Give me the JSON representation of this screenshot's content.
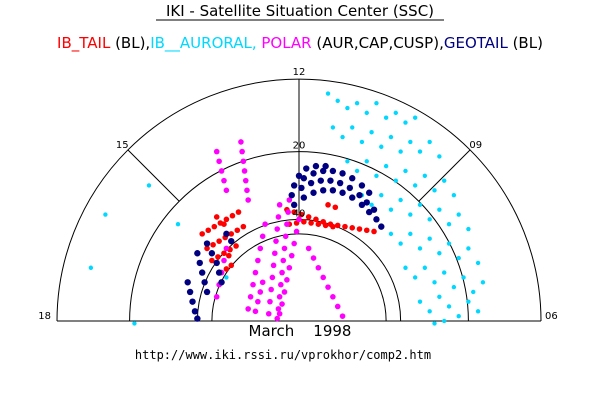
{
  "chart_data": {
    "type": "scatter",
    "coordinate_system": "polar half-dial (magnetic local time vs. latitude rings)",
    "title": "IKI - Satellite Situation Center (SSC)",
    "subtitle_segments": [
      {
        "text": "IB_TAIL",
        "color": "#ff0000"
      },
      {
        "text": " (BL),",
        "color": "#000000"
      },
      {
        "text": "IB__AURORAL,",
        "color": "#00d8ff"
      },
      {
        "text": " POLAR",
        "color": "#ff00ff"
      },
      {
        "text": " (AUR,CAP,CUSP),",
        "color": "#000000"
      },
      {
        "text": "GEOTAIL",
        "color": "#000080"
      },
      {
        "text": " (BL)",
        "color": "#000000"
      }
    ],
    "date_label": "March    1998",
    "url_label": "http://www.iki.rssi.ru/vprokhor/comp2.htm",
    "time_labels": [
      {
        "text": "18",
        "angle_deg": 180,
        "inner": false
      },
      {
        "text": "15",
        "angle_deg": 135,
        "inner": false
      },
      {
        "text": "12",
        "angle_deg": 90,
        "inner": false
      },
      {
        "text": "09",
        "angle_deg": 45,
        "inner": false
      },
      {
        "text": "06",
        "angle_deg": 0,
        "inner": false
      },
      {
        "text": "20",
        "angle_deg": 90,
        "inner": true
      },
      {
        "text": "40",
        "angle_deg": 90,
        "inner": true
      }
    ],
    "rings": [
      1.0,
      0.7,
      0.42,
      0.36
    ],
    "spokes_deg": [
      45,
      90,
      135
    ],
    "series": [
      {
        "name": "IB_TAIL",
        "color": "#ff0000",
        "points": [
          [
            -0.4,
            0.36
          ],
          [
            -0.375,
            0.375
          ],
          [
            -0.35,
            0.39
          ],
          [
            -0.325,
            0.405
          ],
          [
            -0.3,
            0.42
          ],
          [
            -0.275,
            0.435
          ],
          [
            -0.25,
            0.45
          ],
          [
            -0.38,
            0.3
          ],
          [
            -0.355,
            0.315
          ],
          [
            -0.33,
            0.33
          ],
          [
            -0.305,
            0.345
          ],
          [
            -0.28,
            0.36
          ],
          [
            -0.255,
            0.375
          ],
          [
            -0.23,
            0.39
          ],
          [
            -0.36,
            0.25
          ],
          [
            -0.335,
            0.265
          ],
          [
            -0.31,
            0.28
          ],
          [
            -0.285,
            0.295
          ],
          [
            -0.26,
            0.31
          ],
          [
            -0.32,
            0.2
          ],
          [
            -0.3,
            0.215
          ],
          [
            -0.28,
            0.23
          ],
          [
            -0.34,
            0.43
          ],
          [
            -0.31,
            0.4
          ],
          [
            -0.29,
            0.27
          ],
          [
            -0.05,
            0.46
          ],
          [
            -0.02,
            0.45
          ],
          [
            0.01,
            0.44
          ],
          [
            0.04,
            0.43
          ],
          [
            0.07,
            0.42
          ],
          [
            0.1,
            0.41
          ],
          [
            0.13,
            0.4
          ],
          [
            0.16,
            0.395
          ],
          [
            0.19,
            0.39
          ],
          [
            0.22,
            0.385
          ],
          [
            0.25,
            0.38
          ],
          [
            0.28,
            0.375
          ],
          [
            0.31,
            0.37
          ],
          [
            -0.04,
            0.4
          ],
          [
            -0.01,
            0.405
          ],
          [
            0.02,
            0.41
          ],
          [
            0.05,
            0.405
          ],
          [
            0.08,
            0.4
          ],
          [
            0.11,
            0.395
          ],
          [
            0.14,
            0.39
          ],
          [
            0.12,
            0.48
          ],
          [
            0.15,
            0.47
          ]
        ]
      },
      {
        "name": "IB__AURORAL",
        "color": "#00d8ff",
        "points": [
          [
            0.12,
            0.94
          ],
          [
            0.16,
            0.91
          ],
          [
            0.2,
            0.88
          ],
          [
            0.24,
            0.9
          ],
          [
            0.28,
            0.86
          ],
          [
            0.32,
            0.9
          ],
          [
            0.36,
            0.84
          ],
          [
            0.4,
            0.86
          ],
          [
            0.44,
            0.82
          ],
          [
            0.48,
            0.84
          ],
          [
            0.14,
            0.8
          ],
          [
            0.18,
            0.76
          ],
          [
            0.22,
            0.8
          ],
          [
            0.26,
            0.74
          ],
          [
            0.3,
            0.78
          ],
          [
            0.34,
            0.72
          ],
          [
            0.38,
            0.76
          ],
          [
            0.42,
            0.7
          ],
          [
            0.46,
            0.74
          ],
          [
            0.5,
            0.7
          ],
          [
            0.54,
            0.74
          ],
          [
            0.58,
            0.68
          ],
          [
            0.2,
            0.66
          ],
          [
            0.24,
            0.62
          ],
          [
            0.28,
            0.66
          ],
          [
            0.32,
            0.6
          ],
          [
            0.36,
            0.64
          ],
          [
            0.4,
            0.58
          ],
          [
            0.44,
            0.62
          ],
          [
            0.48,
            0.56
          ],
          [
            0.52,
            0.6
          ],
          [
            0.56,
            0.54
          ],
          [
            0.6,
            0.58
          ],
          [
            0.64,
            0.52
          ],
          [
            0.26,
            0.52
          ],
          [
            0.3,
            0.48
          ],
          [
            0.34,
            0.52
          ],
          [
            0.38,
            0.46
          ],
          [
            0.42,
            0.5
          ],
          [
            0.46,
            0.44
          ],
          [
            0.5,
            0.48
          ],
          [
            0.54,
            0.42
          ],
          [
            0.58,
            0.46
          ],
          [
            0.62,
            0.4
          ],
          [
            0.66,
            0.44
          ],
          [
            0.7,
            0.38
          ],
          [
            0.38,
            0.36
          ],
          [
            0.42,
            0.32
          ],
          [
            0.46,
            0.36
          ],
          [
            0.5,
            0.3
          ],
          [
            0.54,
            0.34
          ],
          [
            0.58,
            0.28
          ],
          [
            0.62,
            0.32
          ],
          [
            0.66,
            0.26
          ],
          [
            0.7,
            0.3
          ],
          [
            0.74,
            0.24
          ],
          [
            0.44,
            0.22
          ],
          [
            0.48,
            0.18
          ],
          [
            0.52,
            0.22
          ],
          [
            0.56,
            0.16
          ],
          [
            0.6,
            0.2
          ],
          [
            0.64,
            0.14
          ],
          [
            0.68,
            0.18
          ],
          [
            0.72,
            0.12
          ],
          [
            0.76,
            0.16
          ],
          [
            0.5,
            0.08
          ],
          [
            0.54,
            0.04
          ],
          [
            0.58,
            0.1
          ],
          [
            0.62,
            0.06
          ],
          [
            0.66,
            0.02
          ],
          [
            0.7,
            0.08
          ],
          [
            0.74,
            0.04
          ],
          [
            0.56,
            -0.01
          ],
          [
            0.6,
            0.0
          ],
          [
            -0.62,
            0.56
          ],
          [
            -0.8,
            0.44
          ],
          [
            -0.86,
            0.22
          ],
          [
            -0.68,
            -0.01
          ],
          [
            -0.5,
            0.4
          ],
          [
            -0.3,
            0.18
          ]
        ]
      },
      {
        "name": "POLAR",
        "color": "#ff00ff",
        "points": [
          [
            -0.34,
            0.7
          ],
          [
            -0.33,
            0.66
          ],
          [
            -0.32,
            0.62
          ],
          [
            -0.31,
            0.58
          ],
          [
            -0.3,
            0.54
          ],
          [
            -0.24,
            0.74
          ],
          [
            -0.235,
            0.7
          ],
          [
            -0.23,
            0.66
          ],
          [
            -0.225,
            0.62
          ],
          [
            -0.22,
            0.58
          ],
          [
            -0.215,
            0.54
          ],
          [
            -0.21,
            0.5
          ],
          [
            -0.08,
            0.48
          ],
          [
            -0.085,
            0.43
          ],
          [
            -0.09,
            0.38
          ],
          [
            -0.095,
            0.33
          ],
          [
            -0.1,
            0.28
          ],
          [
            -0.105,
            0.23
          ],
          [
            -0.11,
            0.18
          ],
          [
            -0.115,
            0.13
          ],
          [
            -0.12,
            0.08
          ],
          [
            -0.125,
            0.03
          ],
          [
            -0.04,
            0.5
          ],
          [
            -0.045,
            0.45
          ],
          [
            -0.05,
            0.4
          ],
          [
            -0.055,
            0.35
          ],
          [
            -0.06,
            0.3
          ],
          [
            -0.065,
            0.25
          ],
          [
            -0.07,
            0.2
          ],
          [
            -0.075,
            0.15
          ],
          [
            -0.08,
            0.1
          ],
          [
            -0.085,
            0.05
          ],
          [
            -0.09,
            0.01
          ],
          [
            -0.14,
            0.4
          ],
          [
            -0.15,
            0.35
          ],
          [
            -0.16,
            0.3
          ],
          [
            -0.17,
            0.25
          ],
          [
            -0.18,
            0.2
          ],
          [
            -0.19,
            0.15
          ],
          [
            -0.2,
            0.1
          ],
          [
            -0.21,
            0.05
          ],
          [
            -0.3,
            0.3
          ],
          [
            -0.31,
            0.25
          ],
          [
            -0.32,
            0.2
          ],
          [
            -0.33,
            0.15
          ],
          [
            -0.34,
            0.1
          ],
          [
            0.0,
            0.42
          ],
          [
            -0.01,
            0.37
          ],
          [
            -0.02,
            0.32
          ],
          [
            -0.03,
            0.27
          ],
          [
            -0.04,
            0.22
          ],
          [
            -0.05,
            0.17
          ],
          [
            -0.06,
            0.12
          ],
          [
            -0.07,
            0.07
          ],
          [
            -0.08,
            0.03
          ],
          [
            0.04,
            0.3
          ],
          [
            0.06,
            0.26
          ],
          [
            0.08,
            0.22
          ],
          [
            0.1,
            0.18
          ],
          [
            0.12,
            0.14
          ],
          [
            0.14,
            0.1
          ],
          [
            0.16,
            0.06
          ],
          [
            0.18,
            0.02
          ],
          [
            -0.18,
            0.04
          ],
          [
            -0.17,
            0.08
          ],
          [
            -0.16,
            0.12
          ],
          [
            -0.15,
            0.16
          ]
        ]
      },
      {
        "name": "GEOTAIL",
        "color": "#000080",
        "points": [
          [
            -0.02,
            0.56
          ],
          [
            0.02,
            0.59
          ],
          [
            0.06,
            0.61
          ],
          [
            0.1,
            0.62
          ],
          [
            0.14,
            0.62
          ],
          [
            0.18,
            0.61
          ],
          [
            0.22,
            0.59
          ],
          [
            0.26,
            0.56
          ],
          [
            0.29,
            0.53
          ],
          [
            -0.03,
            0.52
          ],
          [
            0.01,
            0.55
          ],
          [
            0.05,
            0.57
          ],
          [
            0.09,
            0.58
          ],
          [
            0.13,
            0.58
          ],
          [
            0.17,
            0.57
          ],
          [
            0.21,
            0.55
          ],
          [
            0.25,
            0.52
          ],
          [
            0.28,
            0.49
          ],
          [
            0.31,
            0.46
          ],
          [
            -0.02,
            0.48
          ],
          [
            0.02,
            0.51
          ],
          [
            0.06,
            0.53
          ],
          [
            0.1,
            0.54
          ],
          [
            0.14,
            0.54
          ],
          [
            0.18,
            0.53
          ],
          [
            0.22,
            0.51
          ],
          [
            0.26,
            0.48
          ],
          [
            0.29,
            0.45
          ],
          [
            0.32,
            0.42
          ],
          [
            0.34,
            0.39
          ],
          [
            0.0,
            0.6
          ],
          [
            0.03,
            0.63
          ],
          [
            0.07,
            0.64
          ],
          [
            0.11,
            0.64
          ],
          [
            -0.38,
            0.32
          ],
          [
            -0.36,
            0.28
          ],
          [
            -0.34,
            0.24
          ],
          [
            -0.33,
            0.2
          ],
          [
            -0.32,
            0.16
          ],
          [
            -0.42,
            0.28
          ],
          [
            -0.41,
            0.24
          ],
          [
            -0.4,
            0.2
          ],
          [
            -0.39,
            0.16
          ],
          [
            -0.38,
            0.12
          ],
          [
            -0.46,
            0.16
          ],
          [
            -0.45,
            0.12
          ],
          [
            -0.44,
            0.08
          ],
          [
            -0.43,
            0.04
          ],
          [
            -0.42,
            0.01
          ],
          [
            -0.3,
            0.36
          ],
          [
            -0.28,
            0.33
          ]
        ]
      }
    ]
  }
}
